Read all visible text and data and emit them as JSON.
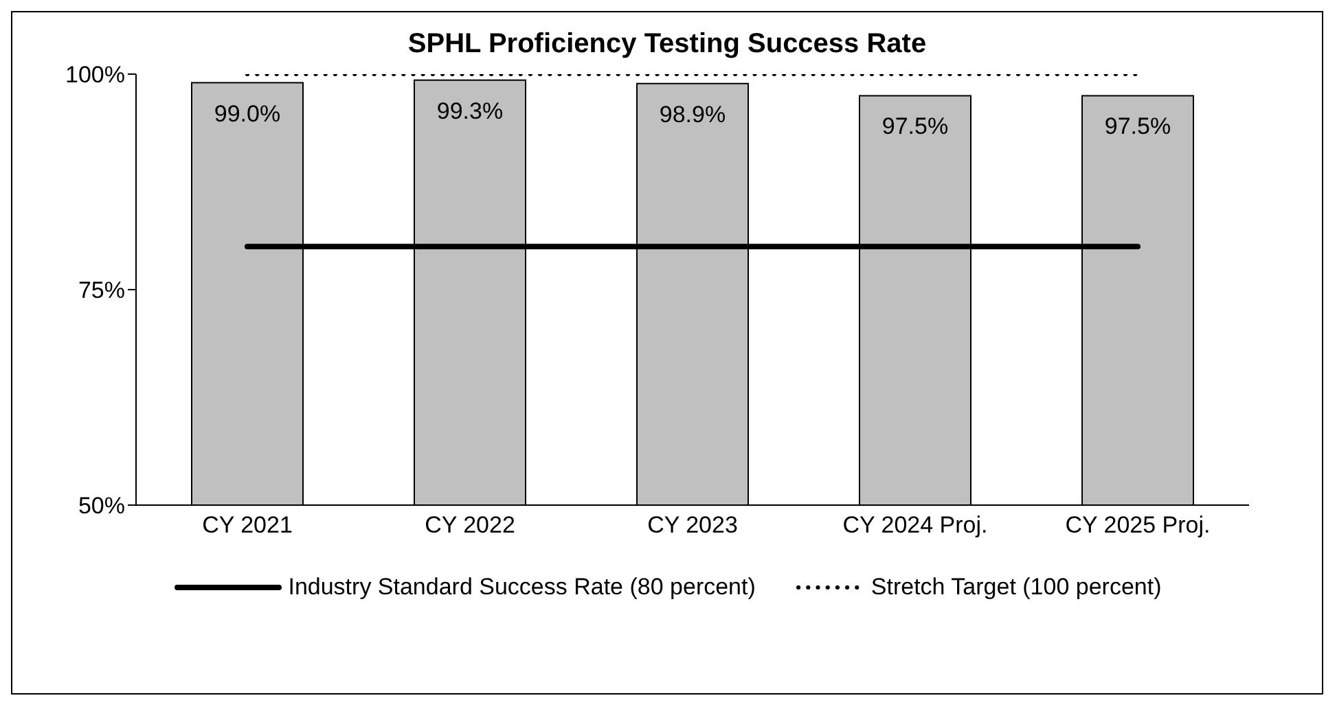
{
  "chart_data": {
    "type": "bar",
    "title": "SPHL Proficiency Testing Success Rate",
    "categories": [
      "CY 2021",
      "CY 2022",
      "CY 2023",
      "CY 2024 Proj.",
      "CY 2025 Proj."
    ],
    "series": [
      {
        "color": "#c0c0c0",
        "values": [
          99.0,
          99.3,
          98.9,
          97.5,
          97.5
        ],
        "value_labels": [
          "99.0%",
          "99.3%",
          "98.9%",
          "97.5%",
          "97.5%"
        ]
      },
      {
        "type": "line",
        "name": "Industry Standard Success Rate (80 percent)",
        "color": "#000000",
        "values": [
          80,
          80,
          80,
          80,
          80
        ],
        "line_style": "solid"
      },
      {
        "type": "line",
        "name": "Stretch Target (100 percent)",
        "color": "#000000",
        "values": [
          100,
          100,
          100,
          100,
          100
        ],
        "line_style": "dotted"
      }
    ],
    "ylim": [
      50,
      100
    ],
    "yticks": [
      {
        "value": 50,
        "label": "50%"
      },
      {
        "value": 75,
        "label": "75%"
      },
      {
        "value": 100,
        "label": "100%"
      }
    ],
    "grid": false,
    "legend": "bottom",
    "marker": "none"
  }
}
